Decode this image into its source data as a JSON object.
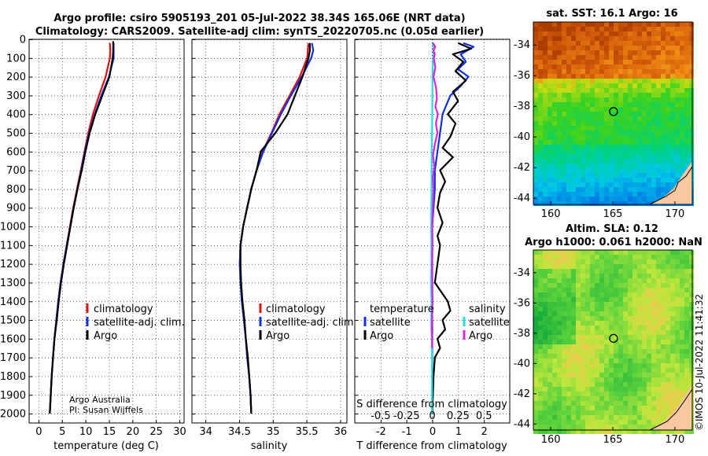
{
  "titles": {
    "line1": "Argo profile: csiro 5905193_201 05-Jul-2022 38.34S 165.06E (NRT data)",
    "line2": "Climatology: CARS2009. Satellite-adj clim: synTS_20220705.nc (0.05d earlier)",
    "sst": "sat. SST: 16.1 Argo: 16",
    "sla1": "Altim. SLA: 0.12",
    "sla2": "Argo h1000: 0.061 h2000: NaN"
  },
  "credits": {
    "line1": "Argo Australia",
    "line2": "PI: Susan Wijffels"
  },
  "stamp": "©IMOS 10-Jul-2022 11:41:32",
  "colors": {
    "climatology": "#e01010",
    "satellite": "#1030e0",
    "argo": "#000000",
    "sat_s": "#20e0e0",
    "argo_s": "#e020e0"
  },
  "chart_data": [
    {
      "type": "line",
      "xlabel": "temperature (deg C)",
      "xlim": [
        -2,
        31
      ],
      "xticks": [
        0,
        5,
        10,
        15,
        20,
        25,
        30
      ],
      "ylim": [
        2050,
        0
      ],
      "yticks": [
        0,
        100,
        200,
        300,
        400,
        500,
        600,
        700,
        800,
        900,
        1000,
        1100,
        1200,
        1300,
        1400,
        1500,
        1600,
        1700,
        1800,
        1900,
        2000
      ],
      "legend": [
        "climatology",
        "satellite-adj. clim.",
        "Argo"
      ],
      "series": [
        {
          "name": "climatology",
          "color": "#e01010",
          "points": [
            [
              15.2,
              20
            ],
            [
              15.3,
              60
            ],
            [
              15.2,
              100
            ],
            [
              14.3,
              200
            ],
            [
              12.9,
              300
            ],
            [
              11.6,
              400
            ],
            [
              10.6,
              500
            ],
            [
              9.8,
              600
            ],
            [
              9.0,
              700
            ],
            [
              8.2,
              800
            ],
            [
              7.4,
              900
            ],
            [
              6.7,
              1000
            ],
            [
              6.0,
              1100
            ],
            [
              5.3,
              1200
            ],
            [
              4.7,
              1300
            ],
            [
              4.2,
              1400
            ],
            [
              3.8,
              1500
            ],
            [
              3.4,
              1600
            ],
            [
              3.1,
              1700
            ],
            [
              2.8,
              1800
            ],
            [
              2.6,
              1900
            ],
            [
              2.4,
              2000
            ]
          ]
        },
        {
          "name": "satellite-adj. clim.",
          "color": "#1030e0",
          "points": [
            [
              16.0,
              20
            ],
            [
              16.0,
              60
            ],
            [
              16.0,
              100
            ],
            [
              15.0,
              200
            ],
            [
              13.4,
              300
            ],
            [
              12.0,
              400
            ],
            [
              10.8,
              500
            ],
            [
              9.9,
              600
            ],
            [
              9.1,
              700
            ],
            [
              8.3,
              800
            ],
            [
              7.5,
              900
            ],
            [
              6.8,
              1000
            ],
            [
              6.0,
              1100
            ],
            [
              5.3,
              1200
            ],
            [
              4.7,
              1300
            ],
            [
              4.2,
              1400
            ],
            [
              3.8,
              1500
            ],
            [
              3.4,
              1600
            ],
            [
              3.1,
              1700
            ],
            [
              2.8,
              1800
            ],
            [
              2.6,
              1900
            ],
            [
              2.4,
              2000
            ]
          ]
        },
        {
          "name": "Argo",
          "color": "#000000",
          "points": [
            [
              15.9,
              10
            ],
            [
              15.9,
              60
            ],
            [
              15.8,
              100
            ],
            [
              15.1,
              200
            ],
            [
              13.6,
              300
            ],
            [
              12.1,
              400
            ],
            [
              10.9,
              500
            ],
            [
              10.0,
              600
            ],
            [
              9.2,
              700
            ],
            [
              8.3,
              800
            ],
            [
              7.5,
              900
            ],
            [
              6.8,
              1000
            ],
            [
              6.1,
              1100
            ],
            [
              5.4,
              1200
            ],
            [
              4.8,
              1300
            ],
            [
              4.3,
              1400
            ],
            [
              3.9,
              1500
            ],
            [
              3.4,
              1600
            ],
            [
              3.1,
              1700
            ],
            [
              2.8,
              1800
            ],
            [
              2.6,
              1900
            ],
            [
              2.4,
              2000
            ]
          ]
        }
      ]
    },
    {
      "type": "line",
      "xlabel": "salinity",
      "xlim": [
        33.8,
        36.1
      ],
      "xticks": [
        34,
        34.5,
        35,
        35.5,
        36
      ],
      "ylim": [
        2050,
        0
      ],
      "legend": [
        "climatology",
        "satellite-adj. clim.",
        "Argo"
      ],
      "series": [
        {
          "name": "climatology",
          "color": "#e01010",
          "points": [
            [
              35.53,
              20
            ],
            [
              35.52,
              60
            ],
            [
              35.51,
              100
            ],
            [
              35.4,
              200
            ],
            [
              35.25,
              300
            ],
            [
              35.1,
              400
            ],
            [
              34.98,
              500
            ],
            [
              34.85,
              600
            ],
            [
              34.76,
              700
            ],
            [
              34.68,
              800
            ],
            [
              34.62,
              900
            ],
            [
              34.56,
              1000
            ],
            [
              34.52,
              1100
            ],
            [
              34.51,
              1200
            ],
            [
              34.52,
              1300
            ],
            [
              34.54,
              1400
            ],
            [
              34.57,
              1500
            ],
            [
              34.6,
              1600
            ],
            [
              34.62,
              1700
            ],
            [
              34.65,
              1800
            ],
            [
              34.67,
              1900
            ],
            [
              34.68,
              2000
            ]
          ]
        },
        {
          "name": "satellite-adj. clim.",
          "color": "#1030e0",
          "points": [
            [
              35.58,
              20
            ],
            [
              35.6,
              60
            ],
            [
              35.57,
              100
            ],
            [
              35.43,
              200
            ],
            [
              35.27,
              300
            ],
            [
              35.12,
              400
            ],
            [
              34.99,
              500
            ],
            [
              34.86,
              600
            ],
            [
              34.76,
              700
            ],
            [
              34.68,
              800
            ],
            [
              34.62,
              900
            ],
            [
              34.56,
              1000
            ],
            [
              34.52,
              1100
            ],
            [
              34.51,
              1200
            ],
            [
              34.52,
              1300
            ],
            [
              34.54,
              1400
            ],
            [
              34.57,
              1500
            ],
            [
              34.6,
              1600
            ],
            [
              34.62,
              1700
            ],
            [
              34.65,
              1800
            ],
            [
              34.67,
              1900
            ],
            [
              34.68,
              2000
            ]
          ]
        },
        {
          "name": "Argo",
          "color": "#000000",
          "points": [
            [
              35.55,
              20
            ],
            [
              35.55,
              60
            ],
            [
              35.53,
              100
            ],
            [
              35.44,
              200
            ],
            [
              35.33,
              300
            ],
            [
              35.22,
              400
            ],
            [
              35.04,
              500
            ],
            [
              34.82,
              600
            ],
            [
              34.76,
              700
            ],
            [
              34.68,
              800
            ],
            [
              34.62,
              900
            ],
            [
              34.56,
              1000
            ],
            [
              34.52,
              1100
            ],
            [
              34.52,
              1200
            ],
            [
              34.53,
              1300
            ],
            [
              34.55,
              1400
            ],
            [
              34.58,
              1500
            ],
            [
              34.6,
              1600
            ],
            [
              34.63,
              1700
            ],
            [
              34.65,
              1800
            ],
            [
              34.67,
              1900
            ],
            [
              34.68,
              2000
            ]
          ]
        }
      ]
    },
    {
      "type": "line",
      "xlabel": "T difference from climatology",
      "xlabel_top": "S difference from climatology",
      "xlim": [
        -3,
        3
      ],
      "xticks": [
        -2,
        -1,
        0,
        1,
        2
      ],
      "sticks": [
        [
          -0.5,
          "-0.5"
        ],
        [
          -0.25,
          "-0.25"
        ],
        [
          0,
          "0"
        ],
        [
          0.25,
          "0.25"
        ],
        [
          0.5,
          "0.5"
        ]
      ],
      "ylim": [
        2050,
        0
      ],
      "legend_t": {
        "title": "temperature",
        "items": [
          "satellite",
          "Argo"
        ]
      },
      "legend_s": {
        "title": "salinity",
        "items": [
          "satellite",
          "Argo"
        ]
      },
      "series": [
        {
          "name": "T satellite",
          "color": "#1030e0",
          "points": [
            [
              1.2,
              20
            ],
            [
              1.6,
              40
            ],
            [
              1.1,
              80
            ],
            [
              1.3,
              120
            ],
            [
              1.0,
              160
            ],
            [
              1.4,
              200
            ],
            [
              1.1,
              250
            ],
            [
              0.7,
              300
            ],
            [
              0.4,
              400
            ],
            [
              0.3,
              500
            ],
            [
              0.2,
              600
            ],
            [
              0.1,
              700
            ],
            [
              0.1,
              800
            ],
            [
              0.05,
              900
            ],
            [
              0.0,
              1000
            ],
            [
              0.0,
              1200
            ],
            [
              0.0,
              1500
            ],
            [
              0.0,
              2000
            ]
          ]
        },
        {
          "name": "T Argo",
          "color": "#000000",
          "points": [
            [
              1.0,
              20
            ],
            [
              1.5,
              50
            ],
            [
              0.8,
              80
            ],
            [
              1.2,
              120
            ],
            [
              0.9,
              170
            ],
            [
              1.3,
              220
            ],
            [
              0.8,
              280
            ],
            [
              1.0,
              330
            ],
            [
              0.6,
              400
            ],
            [
              0.9,
              450
            ],
            [
              0.7,
              520
            ],
            [
              0.4,
              580
            ],
            [
              0.8,
              630
            ],
            [
              0.3,
              700
            ],
            [
              0.5,
              760
            ],
            [
              0.3,
              820
            ],
            [
              0.2,
              900
            ],
            [
              0.4,
              980
            ],
            [
              0.2,
              1050
            ],
            [
              0.3,
              1100
            ],
            [
              0.2,
              1200
            ],
            [
              0.1,
              1300
            ],
            [
              0.6,
              1400
            ],
            [
              0.7,
              1450
            ],
            [
              0.4,
              1500
            ],
            [
              0.5,
              1550
            ],
            [
              0.2,
              1600
            ],
            [
              0.3,
              1650
            ],
            [
              0.1,
              1700
            ],
            [
              0.05,
              1800
            ],
            [
              0.0,
              2000
            ]
          ]
        },
        {
          "name": "S satellite",
          "color": "#20e0e0",
          "points": [
            [
              0.02,
              20
            ],
            [
              0.05,
              60
            ],
            [
              0.03,
              100
            ],
            [
              0.01,
              200
            ],
            [
              0.0,
              400
            ],
            [
              -0.02,
              600
            ],
            [
              -0.03,
              800
            ],
            [
              -0.04,
              1000
            ],
            [
              -0.03,
              1200
            ],
            [
              -0.05,
              1300
            ],
            [
              -0.03,
              1400
            ],
            [
              -0.04,
              1500
            ],
            [
              -0.02,
              1600
            ],
            [
              -0.01,
              1700
            ],
            [
              -0.01,
              1900
            ],
            [
              -0.01,
              2000
            ]
          ]
        },
        {
          "name": "S Argo",
          "color": "#e020e0",
          "points": [
            [
              0.03,
              20
            ],
            [
              0.12,
              40
            ],
            [
              0.05,
              60
            ],
            [
              0.1,
              80
            ],
            [
              0.06,
              100
            ],
            [
              0.12,
              150
            ],
            [
              0.05,
              200
            ],
            [
              0.15,
              260
            ],
            [
              0.18,
              320
            ],
            [
              0.12,
              360
            ],
            [
              0.22,
              400
            ],
            [
              0.14,
              450
            ],
            [
              0.2,
              500
            ],
            [
              0.1,
              560
            ],
            [
              0.03,
              620
            ],
            [
              0.08,
              680
            ],
            [
              0.02,
              740
            ],
            [
              0.05,
              800
            ],
            [
              0.02,
              900
            ],
            [
              0.0,
              1000
            ],
            [
              0.01,
              1100
            ],
            [
              -0.01,
              1200
            ],
            [
              0.0,
              1300
            ],
            [
              0.01,
              1400
            ],
            [
              -0.01,
              1500
            ],
            [
              -0.02,
              1550
            ],
            [
              0.0,
              1600
            ],
            [
              -0.01,
              1650
            ]
          ]
        }
      ]
    },
    {
      "type": "heatmap",
      "title": "sat. SST: 16.1 Argo: 16",
      "xticks": [
        160,
        165,
        170
      ],
      "yticks": [
        -34,
        -36,
        -38,
        -40,
        -42,
        -44
      ],
      "xlim": [
        158.6,
        171.4
      ],
      "ylim": [
        -44.4,
        -32.5
      ],
      "marker": [
        165.06,
        -38.34
      ]
    },
    {
      "type": "heatmap",
      "title": "Altim. SLA: 0.12",
      "xticks": [
        160,
        165,
        170
      ],
      "yticks": [
        -34,
        -36,
        -38,
        -40,
        -42,
        -44
      ],
      "xlim": [
        158.6,
        171.4
      ],
      "ylim": [
        -44.4,
        -32.5
      ],
      "marker": [
        165.06,
        -38.34
      ]
    }
  ]
}
